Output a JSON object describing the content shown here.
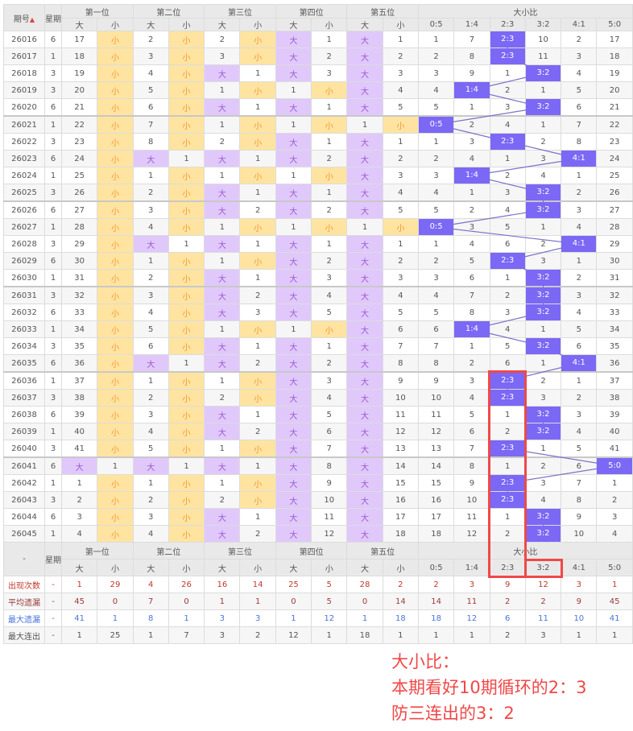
{
  "header": {
    "issue": "期号",
    "weekday": "星期",
    "sort_icon": "sort-up-icon",
    "positions": [
      "第一位",
      "第二位",
      "第三位",
      "第四位",
      "第五位"
    ],
    "big": "大",
    "small": "小",
    "ratio_title": "大小比",
    "ratios": [
      "0:5",
      "1:4",
      "2:3",
      "3:2",
      "4:1",
      "5:0"
    ]
  },
  "colors": {
    "big_bg": "#e0c8fb",
    "small_bg": "#ffe4a1",
    "hit": "#7b68f5",
    "annotation": "#f04848"
  },
  "rows": [
    {
      "id": "26016",
      "wd": "6",
      "c": [
        "17",
        "小",
        "2",
        "小",
        "2",
        "小",
        "大",
        "1",
        "大",
        "1",
        "1",
        "7",
        "2:3",
        "10",
        "2",
        "17"
      ]
    },
    {
      "id": "26017",
      "wd": "1",
      "c": [
        "18",
        "小",
        "3",
        "小",
        "3",
        "小",
        "大",
        "2",
        "大",
        "2",
        "2",
        "8",
        "2:3",
        "11",
        "3",
        "18"
      ]
    },
    {
      "id": "26018",
      "wd": "3",
      "c": [
        "19",
        "小",
        "4",
        "小",
        "大",
        "1",
        "大",
        "3",
        "大",
        "3",
        "3",
        "9",
        "1",
        "3:2",
        "4",
        "19"
      ]
    },
    {
      "id": "26019",
      "wd": "3",
      "c": [
        "20",
        "小",
        "5",
        "小",
        "1",
        "小",
        "1",
        "小",
        "大",
        "4",
        "4",
        "1:4",
        "2",
        "1",
        "5",
        "20"
      ]
    },
    {
      "id": "26020",
      "wd": "6",
      "c": [
        "21",
        "小",
        "6",
        "小",
        "大",
        "1",
        "大",
        "1",
        "大",
        "5",
        "5",
        "1",
        "3",
        "3:2",
        "6",
        "21"
      ]
    },
    {
      "id": "26021",
      "wd": "1",
      "c": [
        "22",
        "小",
        "7",
        "小",
        "1",
        "小",
        "1",
        "小",
        "1",
        "小",
        "0:5",
        "2",
        "4",
        "1",
        "7",
        "22"
      ]
    },
    {
      "id": "26022",
      "wd": "3",
      "c": [
        "23",
        "小",
        "8",
        "小",
        "2",
        "小",
        "大",
        "1",
        "大",
        "1",
        "1",
        "3",
        "2:3",
        "2",
        "8",
        "23"
      ]
    },
    {
      "id": "26023",
      "wd": "6",
      "c": [
        "24",
        "小",
        "大",
        "1",
        "大",
        "1",
        "大",
        "2",
        "大",
        "2",
        "2",
        "4",
        "1",
        "3",
        "4:1",
        "24"
      ]
    },
    {
      "id": "26024",
      "wd": "1",
      "c": [
        "25",
        "小",
        "1",
        "小",
        "1",
        "小",
        "1",
        "小",
        "大",
        "3",
        "3",
        "1:4",
        "2",
        "4",
        "1",
        "25"
      ]
    },
    {
      "id": "26025",
      "wd": "3",
      "c": [
        "26",
        "小",
        "2",
        "小",
        "大",
        "1",
        "大",
        "1",
        "大",
        "4",
        "4",
        "1",
        "3",
        "3:2",
        "2",
        "26"
      ]
    },
    {
      "id": "26026",
      "wd": "6",
      "c": [
        "27",
        "小",
        "3",
        "小",
        "大",
        "2",
        "大",
        "2",
        "大",
        "5",
        "5",
        "2",
        "4",
        "3:2",
        "3",
        "27"
      ]
    },
    {
      "id": "26027",
      "wd": "1",
      "c": [
        "28",
        "小",
        "4",
        "小",
        "1",
        "小",
        "1",
        "小",
        "1",
        "小",
        "0:5",
        "3",
        "5",
        "1",
        "4",
        "28"
      ]
    },
    {
      "id": "26028",
      "wd": "3",
      "c": [
        "29",
        "小",
        "大",
        "1",
        "大",
        "1",
        "大",
        "1",
        "大",
        "1",
        "1",
        "4",
        "6",
        "2",
        "4:1",
        "29"
      ]
    },
    {
      "id": "26029",
      "wd": "6",
      "c": [
        "30",
        "小",
        "1",
        "小",
        "1",
        "小",
        "大",
        "2",
        "大",
        "2",
        "2",
        "5",
        "2:3",
        "3",
        "1",
        "30"
      ]
    },
    {
      "id": "26030",
      "wd": "1",
      "c": [
        "31",
        "小",
        "2",
        "小",
        "大",
        "1",
        "大",
        "3",
        "大",
        "3",
        "3",
        "6",
        "1",
        "3:2",
        "2",
        "31"
      ]
    },
    {
      "id": "26031",
      "wd": "3",
      "c": [
        "32",
        "小",
        "3",
        "小",
        "大",
        "2",
        "大",
        "4",
        "大",
        "4",
        "4",
        "7",
        "2",
        "3:2",
        "3",
        "32"
      ]
    },
    {
      "id": "26032",
      "wd": "6",
      "c": [
        "33",
        "小",
        "4",
        "小",
        "大",
        "3",
        "大",
        "5",
        "大",
        "5",
        "5",
        "8",
        "3",
        "3:2",
        "4",
        "33"
      ]
    },
    {
      "id": "26033",
      "wd": "1",
      "c": [
        "34",
        "小",
        "5",
        "小",
        "1",
        "小",
        "1",
        "小",
        "大",
        "6",
        "6",
        "1:4",
        "4",
        "1",
        "5",
        "34"
      ]
    },
    {
      "id": "26034",
      "wd": "3",
      "c": [
        "35",
        "小",
        "6",
        "小",
        "大",
        "1",
        "大",
        "1",
        "大",
        "7",
        "7",
        "1",
        "5",
        "3:2",
        "6",
        "35"
      ]
    },
    {
      "id": "26035",
      "wd": "6",
      "c": [
        "36",
        "小",
        "大",
        "1",
        "大",
        "2",
        "大",
        "2",
        "大",
        "8",
        "8",
        "2",
        "6",
        "1",
        "4:1",
        "36"
      ]
    },
    {
      "id": "26036",
      "wd": "1",
      "c": [
        "37",
        "小",
        "1",
        "小",
        "1",
        "小",
        "大",
        "3",
        "大",
        "9",
        "9",
        "3",
        "2:3",
        "2",
        "1",
        "37"
      ]
    },
    {
      "id": "26037",
      "wd": "3",
      "c": [
        "38",
        "小",
        "2",
        "小",
        "2",
        "小",
        "大",
        "4",
        "大",
        "10",
        "10",
        "4",
        "2:3",
        "3",
        "2",
        "38"
      ]
    },
    {
      "id": "26038",
      "wd": "6",
      "c": [
        "39",
        "小",
        "3",
        "小",
        "大",
        "1",
        "大",
        "5",
        "大",
        "11",
        "11",
        "5",
        "1",
        "3:2",
        "3",
        "39"
      ]
    },
    {
      "id": "26039",
      "wd": "1",
      "c": [
        "40",
        "小",
        "4",
        "小",
        "大",
        "2",
        "大",
        "6",
        "大",
        "12",
        "12",
        "6",
        "2",
        "3:2",
        "4",
        "40"
      ]
    },
    {
      "id": "26040",
      "wd": "3",
      "c": [
        "41",
        "小",
        "5",
        "小",
        "1",
        "小",
        "大",
        "7",
        "大",
        "13",
        "13",
        "7",
        "2:3",
        "1",
        "5",
        "41"
      ]
    },
    {
      "id": "26041",
      "wd": "6",
      "c": [
        "大",
        "1",
        "大",
        "1",
        "大",
        "1",
        "大",
        "8",
        "大",
        "14",
        "14",
        "8",
        "1",
        "2",
        "6",
        "5:0"
      ]
    },
    {
      "id": "26042",
      "wd": "1",
      "c": [
        "1",
        "小",
        "1",
        "小",
        "1",
        "小",
        "大",
        "9",
        "大",
        "15",
        "15",
        "9",
        "2:3",
        "3",
        "7",
        "1"
      ]
    },
    {
      "id": "26043",
      "wd": "3",
      "c": [
        "2",
        "小",
        "2",
        "小",
        "2",
        "小",
        "大",
        "10",
        "大",
        "16",
        "16",
        "10",
        "2:3",
        "4",
        "8",
        "2"
      ]
    },
    {
      "id": "26044",
      "wd": "6",
      "c": [
        "3",
        "小",
        "3",
        "小",
        "大",
        "1",
        "大",
        "11",
        "大",
        "17",
        "17",
        "11",
        "1",
        "3:2",
        "9",
        "3"
      ]
    },
    {
      "id": "26045",
      "wd": "1",
      "c": [
        "4",
        "小",
        "4",
        "小",
        "大",
        "2",
        "大",
        "12",
        "大",
        "18",
        "18",
        "12",
        "2",
        "3:2",
        "10",
        "4"
      ]
    }
  ],
  "footer_header": {
    "dash": "-"
  },
  "stats": [
    {
      "label": "出现次数",
      "wd": "-",
      "c": [
        "1",
        "29",
        "4",
        "26",
        "16",
        "14",
        "25",
        "5",
        "28",
        "2",
        "2",
        "3",
        "9",
        "12",
        "3",
        "1"
      ]
    },
    {
      "label": "平均遗漏",
      "wd": "-",
      "c": [
        "45",
        "0",
        "7",
        "0",
        "1",
        "1",
        "0",
        "5",
        "0",
        "14",
        "14",
        "11",
        "2",
        "2",
        "9",
        "45"
      ]
    },
    {
      "label": "最大遗漏",
      "wd": "-",
      "c": [
        "41",
        "1",
        "8",
        "1",
        "3",
        "3",
        "1",
        "12",
        "1",
        "18",
        "18",
        "12",
        "6",
        "11",
        "10",
        "41"
      ]
    },
    {
      "label": "最大连出",
      "wd": "-",
      "c": [
        "1",
        "25",
        "1",
        "7",
        "3",
        "2",
        "12",
        "1",
        "18",
        "1",
        "1",
        "1",
        "2",
        "3",
        "1",
        "1"
      ]
    }
  ],
  "annotation": {
    "line1": "大小比：",
    "line2": "本期看好10期循环的2：3",
    "line3": "防三连出的3：2"
  }
}
